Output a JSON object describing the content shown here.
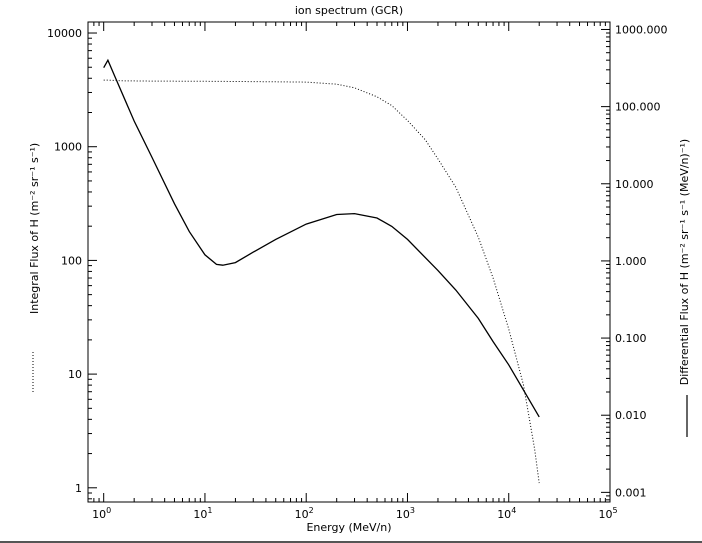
{
  "chart_data": {
    "type": "line",
    "title": "ion spectrum (GCR)",
    "xlabel": "Energy (MeV/n)",
    "ylabel_left": "Integral Flux of H (m⁻² sr⁻¹ s⁻¹)",
    "ylabel_right": "Differential Flux of H (m⁻² sr⁻¹ s⁻¹ (MeV/n)⁻¹)",
    "x_scale": "log",
    "y_scale": "log",
    "xlim": [
      0.7,
      100000
    ],
    "ylim_left": [
      0.75,
      12500
    ],
    "ylim_right": [
      0.00075,
      1250
    ],
    "x_ticks": [
      {
        "value": 1,
        "base": "10",
        "exp": "0"
      },
      {
        "value": 10,
        "base": "10",
        "exp": "1"
      },
      {
        "value": 100,
        "base": "10",
        "exp": "2"
      },
      {
        "value": 1000,
        "base": "10",
        "exp": "3"
      },
      {
        "value": 10000,
        "base": "10",
        "exp": "4"
      },
      {
        "value": 100000,
        "base": "10",
        "exp": "5"
      }
    ],
    "y_left_ticks": [
      {
        "value": 1,
        "label": "1"
      },
      {
        "value": 10,
        "label": "10"
      },
      {
        "value": 100,
        "label": "100"
      },
      {
        "value": 1000,
        "label": "1000"
      },
      {
        "value": 10000,
        "label": "10000"
      }
    ],
    "y_right_ticks": [
      {
        "value": 0.001,
        "label": "0.001"
      },
      {
        "value": 0.01,
        "label": "0.010"
      },
      {
        "value": 0.1,
        "label": "0.100"
      },
      {
        "value": 1,
        "label": "1.000"
      },
      {
        "value": 10,
        "label": "10.000"
      },
      {
        "value": 100,
        "label": "100.000"
      },
      {
        "value": 1000,
        "label": "1000.000"
      }
    ],
    "grid": false,
    "series": [
      {
        "axis": "left",
        "style": "dotted",
        "x": [
          1,
          1.1,
          1.5,
          3,
          10,
          30,
          100,
          200,
          300,
          500,
          700,
          1000,
          1500,
          2000,
          3000,
          5000,
          7000,
          10000,
          14000,
          18000,
          20000
        ],
        "y": [
          3850,
          3850,
          3800,
          3780,
          3760,
          3740,
          3700,
          3550,
          3300,
          2750,
          2300,
          1700,
          1150,
          780,
          440,
          160,
          70,
          25,
          8,
          2.2,
          1.1
        ]
      },
      {
        "axis": "right",
        "style": "solid",
        "x": [
          1,
          1.1,
          1.3,
          2,
          3,
          5,
          7,
          10,
          13,
          15,
          20,
          30,
          50,
          100,
          200,
          300,
          500,
          700,
          1000,
          2000,
          3000,
          5000,
          7000,
          10000,
          20000
        ],
        "y": [
          320,
          400,
          240,
          65,
          22,
          5.5,
          2.4,
          1.2,
          0.9,
          0.88,
          0.95,
          1.3,
          1.9,
          3,
          4,
          4.1,
          3.6,
          2.8,
          1.9,
          0.75,
          0.42,
          0.18,
          0.09,
          0.045,
          0.0095
        ]
      }
    ]
  }
}
